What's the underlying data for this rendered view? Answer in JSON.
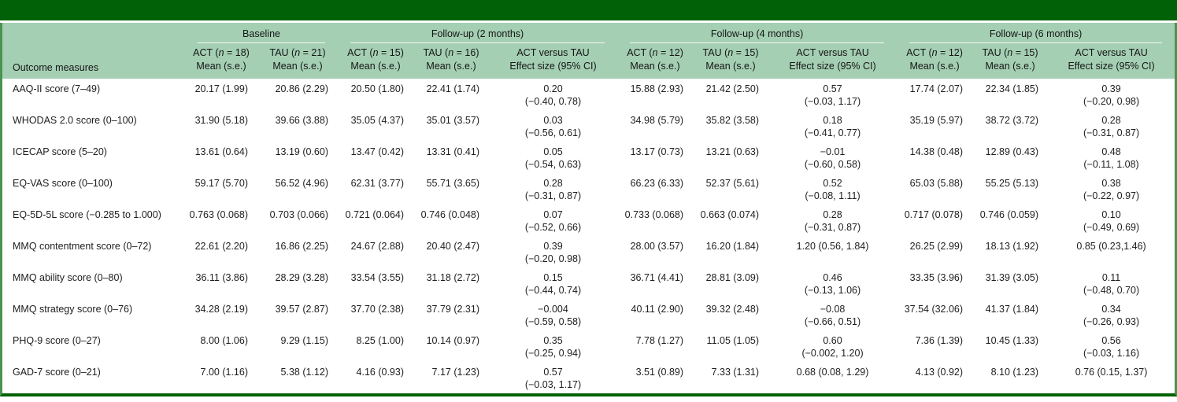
{
  "theme": {
    "top_bar_color": "#016106",
    "header_band_color": "#a4cfb3",
    "frame_color": "#4a9350",
    "bottom_border_color": "#016106",
    "header_rule_color": "#ffffff",
    "text_color": "#1e1e1e"
  },
  "table": {
    "measure_header": "Outcome measures",
    "groups": [
      {
        "label": "Baseline",
        "cols": [
          "ACT (n = 18)\nMean (s.e.)",
          "TAU (n = 21)\nMean (s.e.)"
        ]
      },
      {
        "label": "Follow-up (2 months)",
        "cols": [
          "ACT (n = 15)\nMean (s.e.)",
          "TAU (n = 16)\nMean (s.e.)",
          "ACT versus TAU\nEffect size (95% CI)"
        ]
      },
      {
        "label": "Follow-up (4 months)",
        "cols": [
          "ACT (n = 12)\nMean (s.e.)",
          "TAU (n = 15)\nMean (s.e.)",
          "ACT versus TAU\nEffect size (95% CI)"
        ]
      },
      {
        "label": "Follow-up (6 months)",
        "cols": [
          "ACT (n = 12)\nMean (s.e.)",
          "TAU (n = 15)\nMean (s.e.)",
          "ACT versus TAU\nEffect size (95% CI)"
        ]
      }
    ],
    "rows": [
      {
        "measure": "AAQ-II score (7–49)",
        "baseline_act": "20.17 (1.99)",
        "baseline_tau": "20.86 (2.29)",
        "fu2_act": "20.50 (1.80)",
        "fu2_tau": "22.41 (1.74)",
        "fu2_effect": [
          "0.20",
          "(−0.40, 0.78)"
        ],
        "fu4_act": "15.88 (2.93)",
        "fu4_tau": "21.42 (2.50)",
        "fu4_effect": [
          "0.57",
          "(−0.03, 1.17)"
        ],
        "fu6_act": "17.74 (2.07)",
        "fu6_tau": "22.34 (1.85)",
        "fu6_effect": [
          "0.39",
          "(−0.20, 0.98)"
        ]
      },
      {
        "measure": "WHODAS 2.0 score (0–100)",
        "baseline_act": "31.90 (5.18)",
        "baseline_tau": "39.66 (3.88)",
        "fu2_act": "35.05 (4.37)",
        "fu2_tau": "35.01 (3.57)",
        "fu2_effect": [
          "0.03",
          "(−0.56, 0.61)"
        ],
        "fu4_act": "34.98 (5.79)",
        "fu4_tau": "35.82 (3.58)",
        "fu4_effect": [
          "0.18",
          "(−0.41, 0.77)"
        ],
        "fu6_act": "35.19 (5.97)",
        "fu6_tau": "38.72 (3.72)",
        "fu6_effect": [
          "0.28",
          "(−0.31, 0.87)"
        ]
      },
      {
        "measure": "ICECAP score (5–20)",
        "baseline_act": "13.61 (0.64)",
        "baseline_tau": "13.19 (0.60)",
        "fu2_act": "13.47 (0.42)",
        "fu2_tau": "13.31 (0.41)",
        "fu2_effect": [
          "0.05",
          "(−0.54, 0.63)"
        ],
        "fu4_act": "13.17 (0.73)",
        "fu4_tau": "13.21 (0.63)",
        "fu4_effect": [
          "−0.01",
          "(−0.60, 0.58)"
        ],
        "fu6_act": "14.38 (0.48)",
        "fu6_tau": "12.89 (0.43)",
        "fu6_effect": [
          "0.48",
          "(−0.11, 1.08)"
        ]
      },
      {
        "measure": "EQ-VAS score (0–100)",
        "baseline_act": "59.17 (5.70)",
        "baseline_tau": "56.52 (4.96)",
        "fu2_act": "62.31 (3.77)",
        "fu2_tau": "55.71 (3.65)",
        "fu2_effect": [
          "0.28",
          "(−0.31, 0.87)"
        ],
        "fu4_act": "66.23 (6.33)",
        "fu4_tau": "52.37 (5.61)",
        "fu4_effect": [
          "0.52",
          "(−0.08, 1.11)"
        ],
        "fu6_act": "65.03 (5.88)",
        "fu6_tau": "55.25 (5.13)",
        "fu6_effect": [
          "0.38",
          "(−0.22, 0.97)"
        ]
      },
      {
        "measure": "EQ-5D-5L score (−0.285 to 1.000)",
        "baseline_act": "0.763 (0.068)",
        "baseline_tau": "0.703 (0.066)",
        "fu2_act": "0.721 (0.064)",
        "fu2_tau": "0.746 (0.048)",
        "fu2_effect": [
          "0.07",
          "(−0.52, 0.66)"
        ],
        "fu4_act": "0.733 (0.068)",
        "fu4_tau": "0.663 (0.074)",
        "fu4_effect": [
          "0.28",
          "(−0.31, 0.87)"
        ],
        "fu6_act": "0.717 (0.078)",
        "fu6_tau": "0.746 (0.059)",
        "fu6_effect": [
          "0.10",
          "(−0.49, 0.69)"
        ]
      },
      {
        "measure": "MMQ contentment score (0–72)",
        "baseline_act": "22.61 (2.20)",
        "baseline_tau": "16.86 (2.25)",
        "fu2_act": "24.67 (2.88)",
        "fu2_tau": "20.40 (2.47)",
        "fu2_effect": [
          "0.39",
          "(−0.20, 0.98)"
        ],
        "fu4_act": "28.00 (3.57)",
        "fu4_tau": "16.20 (1.84)",
        "fu4_effect": [
          "1.20 (0.56, 1.84)"
        ],
        "fu6_act": "26.25 (2.99)",
        "fu6_tau": "18.13 (1.92)",
        "fu6_effect": [
          "0.85 (0.23,1.46)"
        ]
      },
      {
        "measure": "MMQ ability score (0–80)",
        "baseline_act": "36.11 (3.86)",
        "baseline_tau": "28.29 (3.28)",
        "fu2_act": "33.54 (3.55)",
        "fu2_tau": "31.18 (2.72)",
        "fu2_effect": [
          "0.15",
          "(−0.44, 0.74)"
        ],
        "fu4_act": "36.71 (4.41)",
        "fu4_tau": "28.81 (3.09)",
        "fu4_effect": [
          "0.46",
          "(−0.13, 1.06)"
        ],
        "fu6_act": "33.35 (3.96)",
        "fu6_tau": "31.39 (3.05)",
        "fu6_effect": [
          "0.11",
          "(−0.48, 0.70)"
        ]
      },
      {
        "measure": "MMQ strategy score (0–76)",
        "baseline_act": "34.28 (2.19)",
        "baseline_tau": "39.57 (2.87)",
        "fu2_act": "37.70 (2.38)",
        "fu2_tau": "37.79 (2.31)",
        "fu2_effect": [
          "−0.004",
          "(−0.59, 0.58)"
        ],
        "fu4_act": "40.11 (2.90)",
        "fu4_tau": "39.32 (2.48)",
        "fu4_effect": [
          "−0.08",
          "(−0.66, 0.51)"
        ],
        "fu6_act": "37.54 (32.06)",
        "fu6_tau": "41.37 (1.84)",
        "fu6_effect": [
          "0.34",
          "(−0.26, 0.93)"
        ]
      },
      {
        "measure": "PHQ-9 score (0–27)",
        "baseline_act": "8.00 (1.06)",
        "baseline_tau": "9.29 (1.15)",
        "fu2_act": "8.25 (1.00)",
        "fu2_tau": "10.14 (0.97)",
        "fu2_effect": [
          "0.35",
          "(−0.25, 0.94)"
        ],
        "fu4_act": "7.78 (1.27)",
        "fu4_tau": "11.05 (1.05)",
        "fu4_effect": [
          "0.60",
          "(−0.002, 1.20)"
        ],
        "fu6_act": "7.36 (1.39)",
        "fu6_tau": "10.45 (1.33)",
        "fu6_effect": [
          "0.56",
          "(−0.03, 1.16)"
        ]
      },
      {
        "measure": "GAD-7 score (0–21)",
        "baseline_act": "7.00 (1.16)",
        "baseline_tau": "5.38 (1.12)",
        "fu2_act": "4.16 (0.93)",
        "fu2_tau": "7.17 (1.23)",
        "fu2_effect": [
          "0.57",
          "(−0.03, 1.17)"
        ],
        "fu4_act": "3.51 (0.89)",
        "fu4_tau": "7.33 (1.31)",
        "fu4_effect": [
          "0.68 (0.08, 1.29)"
        ],
        "fu6_act": "4.13 (0.92)",
        "fu6_tau": "8.10 (1.23)",
        "fu6_effect": [
          "0.76 (0.15, 1.37)"
        ]
      }
    ]
  }
}
